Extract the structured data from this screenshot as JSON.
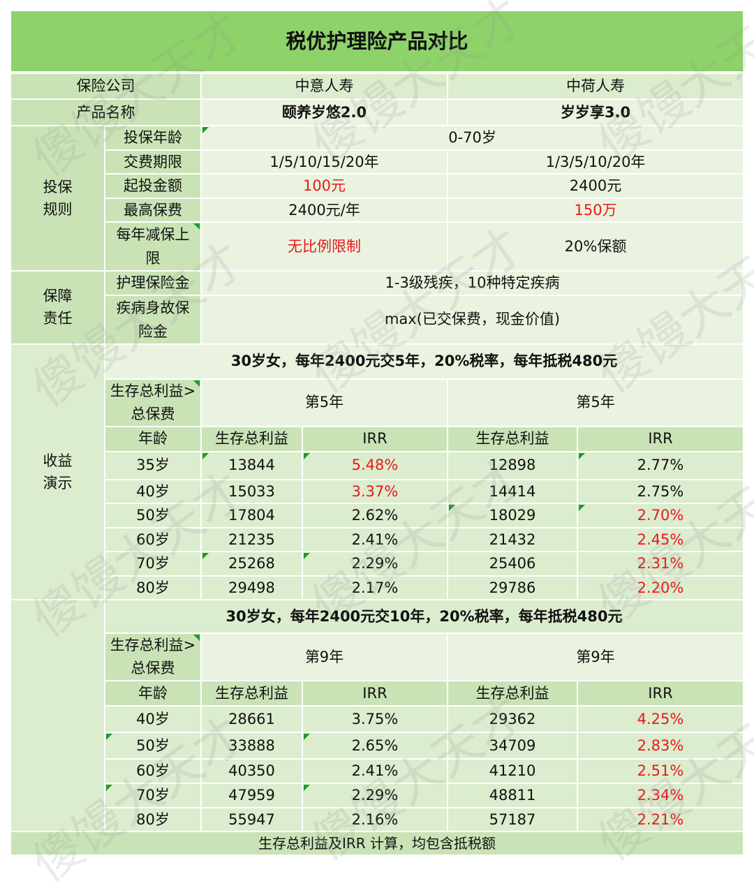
{
  "title": "税优护理险产品对比",
  "header": {
    "company_label": "保险公司",
    "company_a": "中意人寿",
    "company_b": "中荷人寿",
    "product_label": "产品名称",
    "product_a": "颐养岁悠2.0",
    "product_b": "岁岁享3.0"
  },
  "rules": {
    "section": "投保\n规则",
    "age_label": "投保年龄",
    "age_value": "0-70岁",
    "term_label": "交费期限",
    "term_a": "1/5/10/15/20年",
    "term_b": "1/3/5/10/20年",
    "min_label": "起投金额",
    "min_a": "100元",
    "min_b": "2400元",
    "max_label": "最高保费",
    "max_a": "2400元/年",
    "max_b": "150万",
    "reduce_label": "每年减保上限",
    "reduce_a": "无比例限制",
    "reduce_b": "20%保额"
  },
  "coverage": {
    "section": "保障\n责任",
    "care_label": "护理保险金",
    "care_value": "1-3级残疾，10种特定疾病",
    "death_label": "疾病身故保险金",
    "death_value": "max(已交保费，现金价值)"
  },
  "returns": {
    "section": "收益\n演示",
    "scenario1": {
      "heading": "30岁女，每年2400元交5年，20%税率，每年抵税480元",
      "breakeven_label": "生存总利益>总保费",
      "breakeven_a": "第5年",
      "breakeven_b": "第5年",
      "age_col": "年龄",
      "benefit_col": "生存总利益",
      "irr_col": "IRR",
      "rows": [
        {
          "age": "35岁",
          "ben_a": "13844",
          "irr_a": "5.48%",
          "ben_b": "12898",
          "irr_b": "2.77%"
        },
        {
          "age": "40岁",
          "ben_a": "15033",
          "irr_a": "3.37%",
          "ben_b": "14414",
          "irr_b": "2.75%"
        },
        {
          "age": "50岁",
          "ben_a": "17804",
          "irr_a": "2.62%",
          "ben_b": "18029",
          "irr_b": "2.70%"
        },
        {
          "age": "60岁",
          "ben_a": "21235",
          "irr_a": "2.41%",
          "ben_b": "21432",
          "irr_b": "2.45%"
        },
        {
          "age": "70岁",
          "ben_a": "25268",
          "irr_a": "2.29%",
          "ben_b": "25406",
          "irr_b": "2.31%"
        },
        {
          "age": "80岁",
          "ben_a": "29498",
          "irr_a": "2.17%",
          "ben_b": "29786",
          "irr_b": "2.20%"
        }
      ]
    },
    "scenario2": {
      "heading": "30岁女，每年2400元交10年，20%税率，每年抵税480元",
      "breakeven_label": "生存总利益>总保费",
      "breakeven_a": "第9年",
      "breakeven_b": "第9年",
      "age_col": "年龄",
      "benefit_col": "生存总利益",
      "irr_col": "IRR",
      "rows": [
        {
          "age": "40岁",
          "ben_a": "28661",
          "irr_a": "3.75%",
          "ben_b": "29362",
          "irr_b": "4.25%"
        },
        {
          "age": "50岁",
          "ben_a": "33888",
          "irr_a": "2.65%",
          "ben_b": "34709",
          "irr_b": "2.83%"
        },
        {
          "age": "60岁",
          "ben_a": "40350",
          "irr_a": "2.41%",
          "ben_b": "41210",
          "irr_b": "2.51%"
        },
        {
          "age": "70岁",
          "ben_a": "47959",
          "irr_a": "2.29%",
          "ben_b": "48811",
          "irr_b": "2.34%"
        },
        {
          "age": "80岁",
          "ben_a": "55947",
          "irr_a": "2.16%",
          "ben_b": "57187",
          "irr_b": "2.21%"
        }
      ]
    }
  },
  "footnote": "生存总利益及IRR 计算，均包含抵税额",
  "watermark_text": "傻馒大天才",
  "colors": {
    "title_bg": "#8ed26a",
    "label_bg": "#c9e3b6",
    "cell_bg": "#eaf3df",
    "highlight": "#e8181c",
    "marker": "#1f9a2a"
  }
}
